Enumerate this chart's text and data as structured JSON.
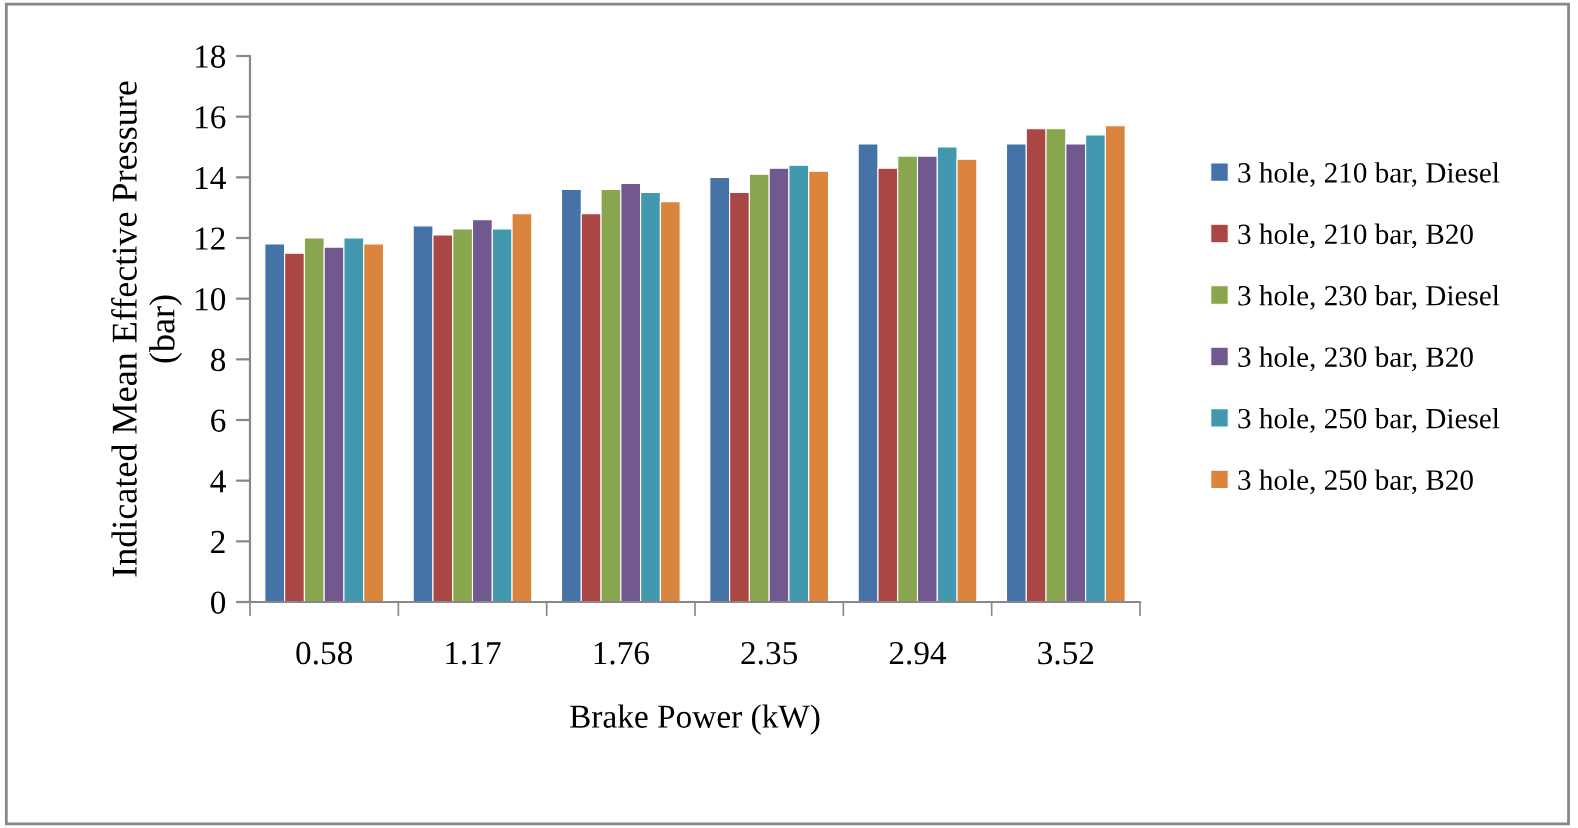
{
  "chart_data": {
    "type": "bar",
    "xlabel": "Brake Power (kW)",
    "ylabel": "Indicated Mean Effective Pressure\n(bar)",
    "categories": [
      "0.58",
      "1.17",
      "1.76",
      "2.35",
      "2.94",
      "3.52"
    ],
    "series": [
      {
        "name": "3 hole, 210 bar, Diesel",
        "color": "#4572a7",
        "values": [
          11.8,
          12.4,
          13.6,
          14.0,
          15.1,
          15.1
        ]
      },
      {
        "name": "3 hole, 210 bar, B20",
        "color": "#aa4643",
        "values": [
          11.5,
          12.1,
          12.8,
          13.5,
          14.3,
          15.6
        ]
      },
      {
        "name": "3 hole, 230 bar, Diesel",
        "color": "#89a54e",
        "values": [
          12.0,
          12.3,
          13.6,
          14.1,
          14.7,
          15.6
        ]
      },
      {
        "name": "3 hole, 230 bar, B20",
        "color": "#71588f",
        "values": [
          11.7,
          12.6,
          13.8,
          14.3,
          14.7,
          15.1
        ]
      },
      {
        "name": "3 hole, 250 bar, Diesel",
        "color": "#4198af",
        "values": [
          12.0,
          12.3,
          13.5,
          14.4,
          15.0,
          15.4
        ]
      },
      {
        "name": "3 hole, 250 bar, B20",
        "color": "#db843d",
        "values": [
          11.8,
          12.8,
          13.2,
          14.2,
          14.6,
          15.7
        ]
      }
    ],
    "ylim": [
      0,
      18
    ],
    "yticks": [
      0,
      2,
      4,
      6,
      8,
      10,
      12,
      14,
      16,
      18
    ],
    "grid": false,
    "legend": "right"
  }
}
